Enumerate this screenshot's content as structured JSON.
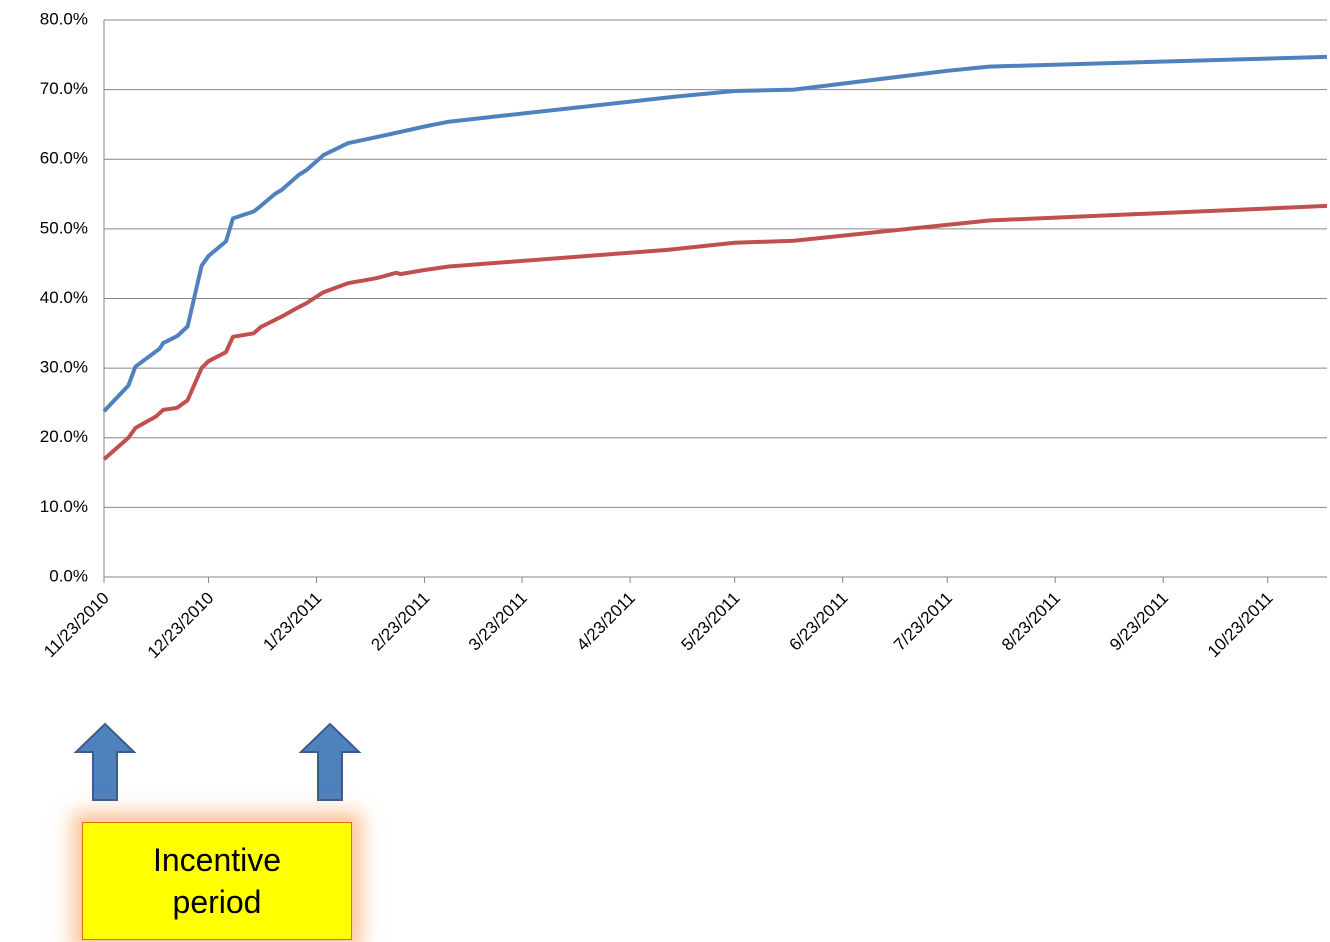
{
  "chart_data": {
    "type": "line",
    "annotation": "Incentive period",
    "xlim": [
      "2010-11-23",
      "2011-11-09"
    ],
    "xticks": [
      {
        "value": "2010-11-23",
        "label": "11/23/2010"
      },
      {
        "value": "2010-12-23",
        "label": "12/23/2010"
      },
      {
        "value": "2011-01-23",
        "label": "1/23/2011"
      },
      {
        "value": "2011-02-23",
        "label": "2/23/2011"
      },
      {
        "value": "2011-03-23",
        "label": "3/23/2011"
      },
      {
        "value": "2011-04-23",
        "label": "4/23/2011"
      },
      {
        "value": "2011-05-23",
        "label": "5/23/2011"
      },
      {
        "value": "2011-06-23",
        "label": "6/23/2011"
      },
      {
        "value": "2011-07-23",
        "label": "7/23/2011"
      },
      {
        "value": "2011-08-23",
        "label": "8/23/2011"
      },
      {
        "value": "2011-09-23",
        "label": "9/23/2011"
      },
      {
        "value": "2011-10-23",
        "label": "10/23/2011"
      }
    ],
    "ylim": [
      0,
      80
    ],
    "yticks": [
      {
        "value": 0,
        "label": "0.0%"
      },
      {
        "value": 10,
        "label": "10.0%"
      },
      {
        "value": 20,
        "label": "20.0%"
      },
      {
        "value": 30,
        "label": "30.0%"
      },
      {
        "value": 40,
        "label": "40.0%"
      },
      {
        "value": 50,
        "label": "50.0%"
      },
      {
        "value": 60,
        "label": "60.0%"
      },
      {
        "value": 70,
        "label": "70.0%"
      },
      {
        "value": 80,
        "label": "80.0%"
      }
    ],
    "grid": true,
    "series": [
      {
        "color": "#4f81bd",
        "x": [
          "2010-11-23",
          "2010-11-30",
          "2010-12-02",
          "2010-12-09",
          "2010-12-10",
          "2010-12-14",
          "2010-12-17",
          "2010-12-21",
          "2010-12-23",
          "2010-12-28",
          "2010-12-30",
          "2011-01-05",
          "2011-01-07",
          "2011-01-11",
          "2011-01-13",
          "2011-01-18",
          "2011-01-20",
          "2011-01-25",
          "2011-02-01",
          "2011-02-14",
          "2011-02-23",
          "2011-03-02",
          "2011-05-06",
          "2011-05-23",
          "2011-06-09",
          "2011-07-23",
          "2011-08-04",
          "2011-11-09"
        ],
        "values": [
          23.8,
          27.5,
          30.2,
          32.8,
          33.6,
          34.6,
          36.0,
          44.7,
          46.1,
          48.2,
          51.5,
          52.5,
          53.3,
          55.0,
          55.6,
          57.8,
          58.4,
          60.6,
          62.3,
          63.7,
          64.7,
          65.4,
          69.0,
          69.8,
          70.0,
          72.7,
          73.3,
          74.7
        ]
      },
      {
        "color": "#c0504d",
        "x": [
          "2010-11-23",
          "2010-11-30",
          "2010-12-02",
          "2010-12-08",
          "2010-12-10",
          "2010-12-14",
          "2010-12-17",
          "2010-12-21",
          "2010-12-23",
          "2010-12-28",
          "2010-12-30",
          "2011-01-05",
          "2011-01-07",
          "2011-01-13",
          "2011-01-18",
          "2011-01-20",
          "2011-01-25",
          "2011-02-01",
          "2011-02-09",
          "2011-02-15",
          "2011-02-16",
          "2011-02-23",
          "2011-03-02",
          "2011-05-04",
          "2011-05-23",
          "2011-06-09",
          "2011-08-04",
          "2011-11-09"
        ],
        "values": [
          16.9,
          20.0,
          21.4,
          23.1,
          24.0,
          24.3,
          25.4,
          30.0,
          31.0,
          32.3,
          34.5,
          35.0,
          35.9,
          37.4,
          38.8,
          39.3,
          40.9,
          42.2,
          42.9,
          43.7,
          43.5,
          44.1,
          44.6,
          47.0,
          48.0,
          48.3,
          51.2,
          53.3
        ]
      }
    ]
  }
}
